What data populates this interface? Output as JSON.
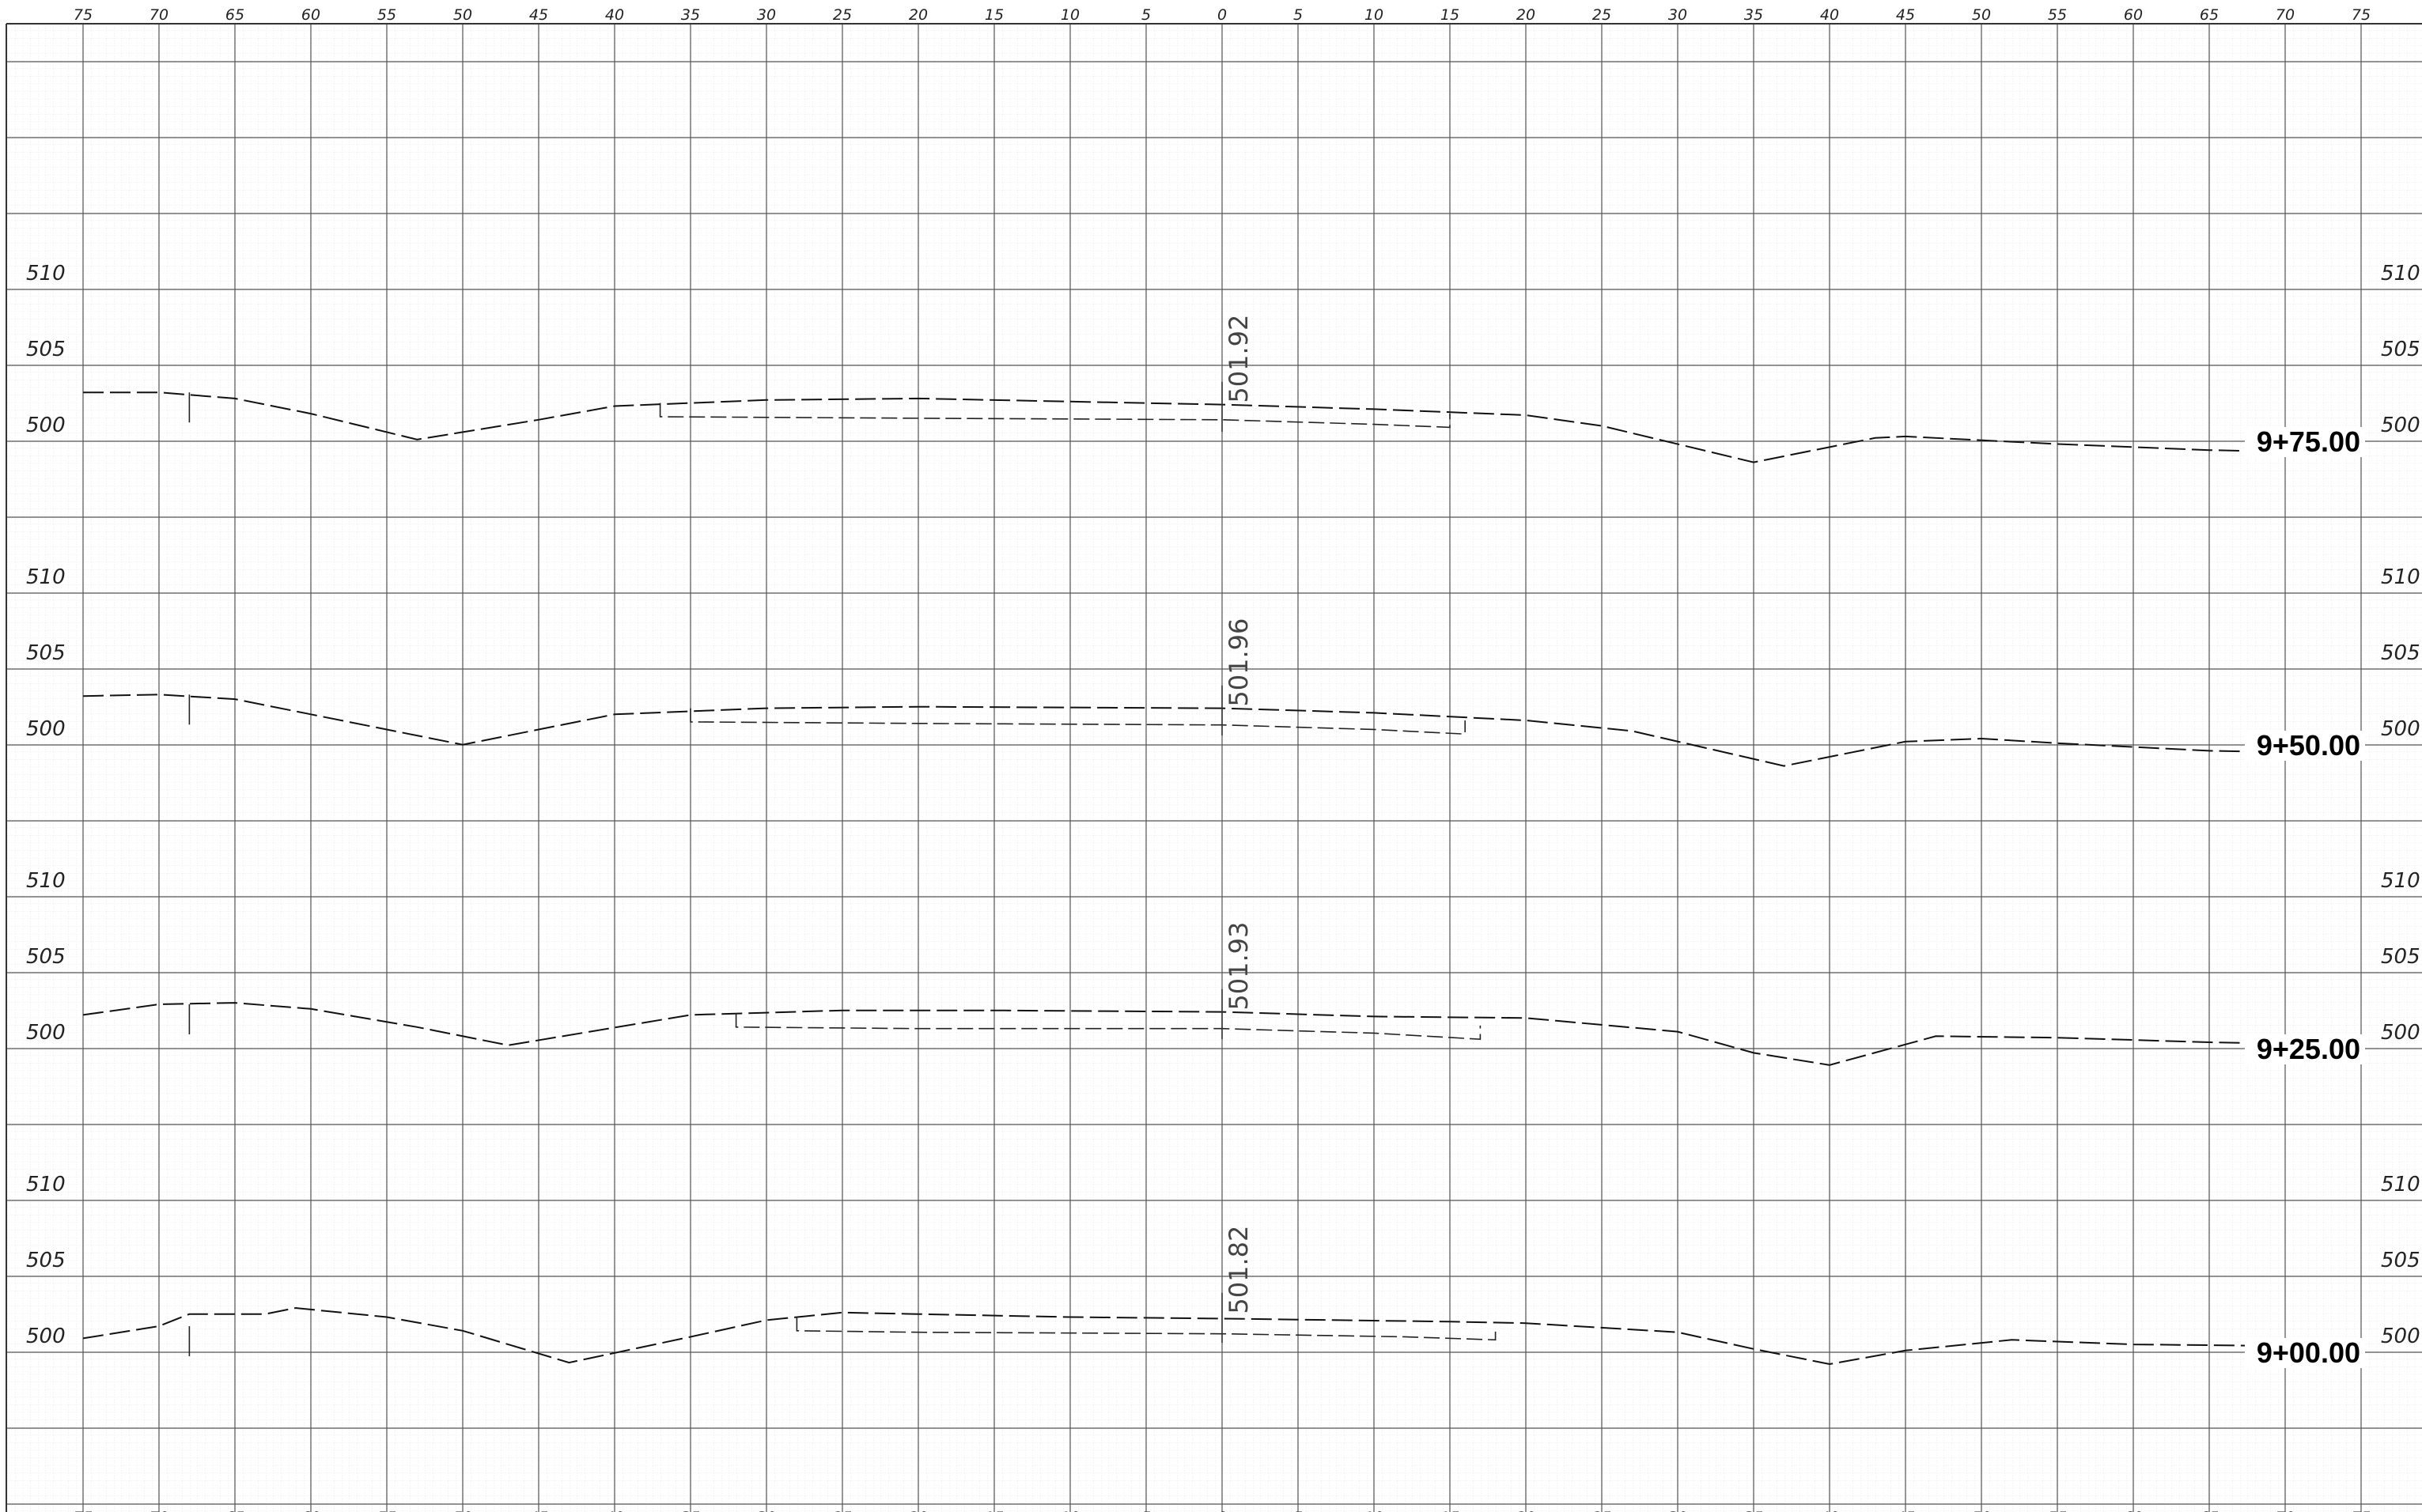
{
  "offset_ticks": [
    "75",
    "70",
    "65",
    "60",
    "55",
    "50",
    "45",
    "40",
    "35",
    "30",
    "25",
    "20",
    "15",
    "10",
    "5",
    "0",
    "5",
    "10",
    "15",
    "20",
    "25",
    "30",
    "35",
    "40",
    "45",
    "50",
    "55",
    "60",
    "65",
    "70",
    "75"
  ],
  "elevation_labels": [
    "510",
    "505",
    "500"
  ],
  "chart_data": {
    "type": "line",
    "x_unit": "offset from centerline",
    "y_unit": "elevation",
    "xlim": [
      -75,
      75
    ],
    "ylim_per_section": [
      495,
      515
    ],
    "grid": true,
    "sections": [
      {
        "station": "9+75.00",
        "centerline_elevation": "501.92",
        "existing_ground": [
          [
            -75,
            502.8
          ],
          [
            -70,
            502.8
          ],
          [
            -65,
            502.4
          ],
          [
            -60,
            501.4
          ],
          [
            -53,
            499.7
          ],
          [
            -45,
            501.0
          ],
          [
            -40,
            501.9
          ],
          [
            -30,
            502.3
          ],
          [
            -20,
            502.4
          ],
          [
            -10,
            502.2
          ],
          [
            0,
            502.0
          ],
          [
            10,
            501.7
          ],
          [
            20,
            501.3
          ],
          [
            25,
            500.6
          ],
          [
            35,
            498.2
          ],
          [
            43,
            499.8
          ],
          [
            45,
            499.9
          ],
          [
            55,
            499.4
          ],
          [
            65,
            499.0
          ],
          [
            75,
            498.8
          ]
        ],
        "proposed_section": [
          [
            -37,
            501.2
          ],
          [
            -20,
            501.1
          ],
          [
            0,
            501.0
          ],
          [
            10,
            500.7
          ],
          [
            15,
            500.5
          ]
        ]
      },
      {
        "station": "9+50.00",
        "centerline_elevation": "501.96",
        "existing_ground": [
          [
            -75,
            502.8
          ],
          [
            -70,
            502.9
          ],
          [
            -65,
            502.6
          ],
          [
            -60,
            501.6
          ],
          [
            -50,
            499.6
          ],
          [
            -40,
            501.6
          ],
          [
            -30,
            502.0
          ],
          [
            -20,
            502.1
          ],
          [
            0,
            502.0
          ],
          [
            10,
            501.7
          ],
          [
            20,
            501.2
          ],
          [
            27,
            500.5
          ],
          [
            37,
            498.2
          ],
          [
            45,
            499.8
          ],
          [
            50,
            500.0
          ],
          [
            55,
            499.7
          ],
          [
            65,
            499.2
          ],
          [
            75,
            499.0
          ]
        ],
        "proposed_section": [
          [
            -35,
            501.1
          ],
          [
            -20,
            501.0
          ],
          [
            0,
            500.9
          ],
          [
            10,
            500.6
          ],
          [
            16,
            500.3
          ]
        ]
      },
      {
        "station": "9+25.00",
        "centerline_elevation": "501.93",
        "existing_ground": [
          [
            -75,
            501.8
          ],
          [
            -70,
            502.5
          ],
          [
            -65,
            502.6
          ],
          [
            -60,
            502.2
          ],
          [
            -53,
            501.0
          ],
          [
            -47,
            499.8
          ],
          [
            -35,
            501.8
          ],
          [
            -25,
            502.1
          ],
          [
            -15,
            502.1
          ],
          [
            0,
            502.0
          ],
          [
            10,
            501.7
          ],
          [
            20,
            501.6
          ],
          [
            30,
            500.7
          ],
          [
            35,
            499.3
          ],
          [
            40,
            498.5
          ],
          [
            47,
            500.4
          ],
          [
            55,
            500.3
          ],
          [
            65,
            500.0
          ],
          [
            70,
            499.9
          ]
        ],
        "proposed_section": [
          [
            -32,
            501.0
          ],
          [
            -20,
            500.9
          ],
          [
            0,
            500.9
          ],
          [
            10,
            500.6
          ],
          [
            17,
            500.2
          ]
        ]
      },
      {
        "station": "9+00.00",
        "centerline_elevation": "501.82",
        "existing_ground": [
          [
            -75,
            500.5
          ],
          [
            -70,
            501.3
          ],
          [
            -68,
            502.1
          ],
          [
            -63,
            502.1
          ],
          [
            -61,
            502.5
          ],
          [
            -55,
            501.9
          ],
          [
            -50,
            501.0
          ],
          [
            -43,
            498.9
          ],
          [
            -35,
            500.6
          ],
          [
            -30,
            501.7
          ],
          [
            -25,
            502.2
          ],
          [
            -20,
            502.1
          ],
          [
            -10,
            501.9
          ],
          [
            0,
            501.8
          ],
          [
            15,
            501.6
          ],
          [
            20,
            501.5
          ],
          [
            30,
            500.9
          ],
          [
            35,
            499.8
          ],
          [
            40,
            498.8
          ],
          [
            45,
            499.7
          ],
          [
            52,
            500.4
          ],
          [
            60,
            500.1
          ],
          [
            70,
            500.0
          ]
        ],
        "proposed_section": [
          [
            -28,
            501.0
          ],
          [
            -20,
            500.9
          ],
          [
            0,
            500.8
          ],
          [
            12,
            500.6
          ],
          [
            18,
            500.4
          ]
        ]
      }
    ]
  }
}
